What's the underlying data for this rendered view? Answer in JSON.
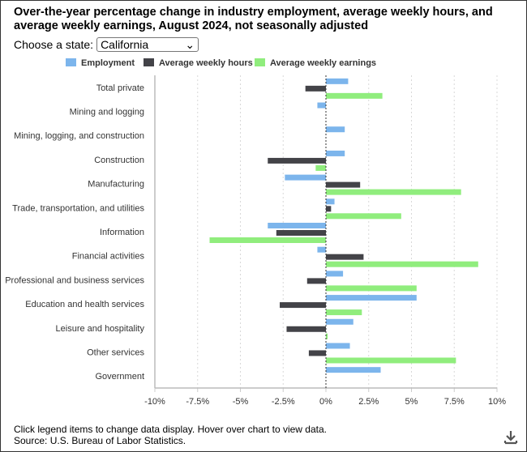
{
  "title": "Over-the-year percentage change in industry employment, average weekly hours, and average weekly earnings, August 2024, not seasonally adjusted",
  "state_selector": {
    "label": "Choose a state:",
    "value": "California"
  },
  "footer": {
    "note": "Click legend items to change data display. Hover over chart to view data.",
    "source": "Source: U.S. Bureau of Labor Statistics."
  },
  "icons": {
    "download": "download-icon",
    "dropdown": "chevron-down-icon"
  },
  "chart_data": {
    "type": "bar",
    "orientation": "horizontal",
    "categories": [
      "Total private",
      "Mining and logging",
      "Mining, logging, and construction",
      "Construction",
      "Manufacturing",
      "Trade, transportation, and utilities",
      "Information",
      "Financial activities",
      "Professional and business services",
      "Education and health services",
      "Leisure and hospitality",
      "Other services",
      "Government"
    ],
    "series": [
      {
        "name": "Employment",
        "color": "#7cb5ec",
        "values": [
          1.3,
          -0.5,
          1.1,
          1.1,
          -2.4,
          0.5,
          -3.4,
          -0.5,
          1.0,
          5.3,
          1.6,
          1.4,
          3.2
        ]
      },
      {
        "name": "Average weekly hours",
        "color": "#434348",
        "values": [
          -1.2,
          null,
          null,
          -3.4,
          2.0,
          0.3,
          -2.9,
          2.2,
          -1.1,
          -2.7,
          -2.3,
          -1.0,
          null
        ]
      },
      {
        "name": "Average weekly earnings",
        "color": "#90ed7d",
        "values": [
          3.3,
          null,
          null,
          -0.6,
          7.9,
          4.4,
          -6.8,
          8.9,
          5.3,
          2.1,
          0.1,
          7.6,
          null
        ]
      }
    ],
    "xlim": [
      -10,
      10
    ],
    "xticks": [
      -10,
      -7.5,
      -5,
      -2.5,
      0,
      2.5,
      5,
      7.5,
      10
    ],
    "xtick_labels": [
      "-10%",
      "-7.5%",
      "-5%",
      "-2.5%",
      "0%",
      "2.5%",
      "5%",
      "7.5%",
      "10%"
    ],
    "grid": true,
    "legend": "top"
  }
}
